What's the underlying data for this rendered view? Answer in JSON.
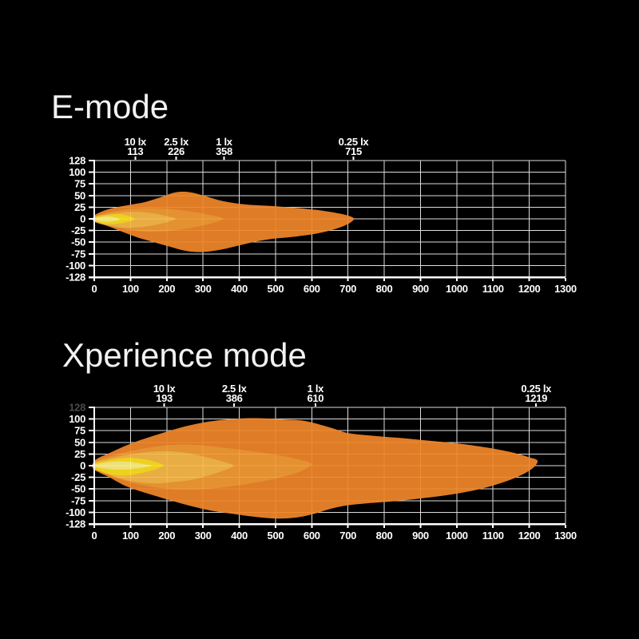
{
  "page": {
    "background": "#000000",
    "grid_line_color": "#DCDCDC",
    "axis_color": "#FFFFFF",
    "label_color": "#FFFFFF",
    "dim_label_color": "#4A4A4A"
  },
  "chart_data": [
    {
      "type": "contour-beam-pattern",
      "title": "E-mode",
      "xlim": [
        0,
        1300
      ],
      "x_ticks": [
        0,
        100,
        200,
        300,
        400,
        500,
        600,
        700,
        800,
        900,
        1000,
        1100,
        1200,
        1300
      ],
      "y_ticks": [
        128,
        100,
        75,
        50,
        25,
        0,
        -25,
        -50,
        -75,
        -100,
        -128
      ],
      "dim_first_y_tick": false,
      "grid": true,
      "annotations": [
        {
          "lux": "10 lx",
          "value": "113",
          "m": 113
        },
        {
          "lux": "2.5 lx",
          "value": "226",
          "m": 226
        },
        {
          "lux": "1 lx",
          "value": "358",
          "m": 358
        },
        {
          "lux": "0.25 lx",
          "value": "715",
          "m": 715
        }
      ],
      "beams": [
        {
          "name": "isoline-0.25lx",
          "color": "#F0862A",
          "points": [
            [
              0,
              7
            ],
            [
              40,
              21
            ],
            [
              90,
              29
            ],
            [
              140,
              36
            ],
            [
              185,
              47
            ],
            [
              225,
              57
            ],
            [
              265,
              57
            ],
            [
              310,
              48
            ],
            [
              355,
              38
            ],
            [
              415,
              31
            ],
            [
              480,
              28
            ],
            [
              550,
              24
            ],
            [
              615,
              19
            ],
            [
              665,
              13
            ],
            [
              700,
              7
            ],
            [
              716,
              0
            ],
            [
              700,
              -11
            ],
            [
              660,
              -23
            ],
            [
              610,
              -32
            ],
            [
              555,
              -38
            ],
            [
              500,
              -42
            ],
            [
              450,
              -48
            ],
            [
              400,
              -57
            ],
            [
              350,
              -66
            ],
            [
              300,
              -71
            ],
            [
              255,
              -69
            ],
            [
              210,
              -60
            ],
            [
              165,
              -50
            ],
            [
              120,
              -40
            ],
            [
              75,
              -27
            ],
            [
              35,
              -15
            ],
            [
              5,
              -7
            ]
          ]
        },
        {
          "name": "isoline-1lx",
          "color": "#F59D35",
          "points": [
            [
              0,
              5
            ],
            [
              45,
              15
            ],
            [
              95,
              21
            ],
            [
              150,
              23
            ],
            [
              210,
              21
            ],
            [
              265,
              16
            ],
            [
              315,
              9
            ],
            [
              356,
              1
            ],
            [
              330,
              -8
            ],
            [
              290,
              -16
            ],
            [
              240,
              -23
            ],
            [
              185,
              -27
            ],
            [
              130,
              -27
            ],
            [
              80,
              -21
            ],
            [
              35,
              -13
            ],
            [
              0,
              -6
            ]
          ]
        },
        {
          "name": "isoline-2.5lx",
          "color": "#FABB4B",
          "points": [
            [
              0,
              4
            ],
            [
              35,
              10
            ],
            [
              80,
              14
            ],
            [
              125,
              15
            ],
            [
              170,
              11
            ],
            [
              205,
              5
            ],
            [
              225,
              0
            ],
            [
              200,
              -7
            ],
            [
              168,
              -13
            ],
            [
              125,
              -18
            ],
            [
              80,
              -19
            ],
            [
              38,
              -14
            ],
            [
              0,
              -5
            ]
          ]
        },
        {
          "name": "isoline-10lx",
          "color": "#FFE11F",
          "points": [
            [
              0,
              3
            ],
            [
              25,
              7
            ],
            [
              55,
              10
            ],
            [
              85,
              8
            ],
            [
              112,
              0
            ],
            [
              88,
              -7
            ],
            [
              58,
              -11
            ],
            [
              28,
              -11
            ],
            [
              0,
              -4
            ]
          ]
        },
        {
          "name": "hotspot-core",
          "color": "#FFF284",
          "points": [
            [
              0,
              1
            ],
            [
              20,
              4
            ],
            [
              45,
              5
            ],
            [
              70,
              -1
            ],
            [
              46,
              -6
            ],
            [
              20,
              -6
            ],
            [
              0,
              -3
            ]
          ]
        }
      ]
    },
    {
      "type": "contour-beam-pattern",
      "title": "Xperience mode",
      "xlim": [
        0,
        1300
      ],
      "x_ticks": [
        0,
        100,
        200,
        300,
        400,
        500,
        600,
        700,
        800,
        900,
        1000,
        1100,
        1200,
        1300
      ],
      "y_ticks": [
        128,
        100,
        75,
        50,
        25,
        0,
        -25,
        -50,
        -75,
        -100,
        -128
      ],
      "dim_first_y_tick": true,
      "grid": true,
      "annotations": [
        {
          "lux": "10 lx",
          "value": "193",
          "m": 193
        },
        {
          "lux": "2.5 lx",
          "value": "386",
          "m": 386
        },
        {
          "lux": "1 lx",
          "value": "610",
          "m": 610
        },
        {
          "lux": "0.25 lx",
          "value": "1219",
          "m": 1219
        }
      ],
      "beams": [
        {
          "name": "isoline-0.25lx",
          "color": "#F0862A",
          "points": [
            [
              0,
              10
            ],
            [
              50,
              30
            ],
            [
              110,
              50
            ],
            [
              180,
              68
            ],
            [
              250,
              84
            ],
            [
              320,
              95
            ],
            [
              395,
              101
            ],
            [
              460,
              102
            ],
            [
              525,
              99
            ],
            [
              580,
              96
            ],
            [
              650,
              82
            ],
            [
              700,
              70
            ],
            [
              770,
              64
            ],
            [
              850,
              59
            ],
            [
              930,
              53
            ],
            [
              1010,
              47
            ],
            [
              1090,
              38
            ],
            [
              1155,
              28
            ],
            [
              1200,
              18
            ],
            [
              1223,
              10
            ],
            [
              1205,
              -8
            ],
            [
              1155,
              -28
            ],
            [
              1080,
              -47
            ],
            [
              1000,
              -60
            ],
            [
              915,
              -69
            ],
            [
              830,
              -76
            ],
            [
              750,
              -81
            ],
            [
              690,
              -86
            ],
            [
              645,
              -94
            ],
            [
              605,
              -104
            ],
            [
              560,
              -112
            ],
            [
              505,
              -115
            ],
            [
              445,
              -111
            ],
            [
              385,
              -104
            ],
            [
              320,
              -96
            ],
            [
              255,
              -84
            ],
            [
              195,
              -71
            ],
            [
              140,
              -58
            ],
            [
              88,
              -44
            ],
            [
              42,
              -25
            ],
            [
              8,
              -11
            ]
          ]
        },
        {
          "name": "isoline-1lx",
          "color": "#F59D35",
          "points": [
            [
              0,
              8
            ],
            [
              50,
              22
            ],
            [
              110,
              33
            ],
            [
              170,
              41
            ],
            [
              230,
              45
            ],
            [
              290,
              44
            ],
            [
              355,
              39
            ],
            [
              425,
              32
            ],
            [
              495,
              24
            ],
            [
              555,
              15
            ],
            [
              600,
              4
            ],
            [
              570,
              -12
            ],
            [
              520,
              -24
            ],
            [
              460,
              -34
            ],
            [
              400,
              -42
            ],
            [
              340,
              -48
            ],
            [
              275,
              -51
            ],
            [
              210,
              -50
            ],
            [
              150,
              -44
            ],
            [
              95,
              -35
            ],
            [
              45,
              -21
            ],
            [
              0,
              -9
            ]
          ]
        },
        {
          "name": "isoline-2.5lx",
          "color": "#FABB4B",
          "points": [
            [
              0,
              6
            ],
            [
              40,
              15
            ],
            [
              90,
              23
            ],
            [
              145,
              29
            ],
            [
              200,
              31
            ],
            [
              255,
              27
            ],
            [
              305,
              19
            ],
            [
              350,
              10
            ],
            [
              384,
              0
            ],
            [
              355,
              -11
            ],
            [
              315,
              -21
            ],
            [
              270,
              -30
            ],
            [
              220,
              -35
            ],
            [
              165,
              -38
            ],
            [
              110,
              -34
            ],
            [
              60,
              -25
            ],
            [
              20,
              -13
            ],
            [
              0,
              -6
            ]
          ]
        },
        {
          "name": "isoline-10lx",
          "color": "#FFE11F",
          "points": [
            [
              0,
              4
            ],
            [
              30,
              10
            ],
            [
              65,
              15
            ],
            [
              100,
              17
            ],
            [
              135,
              14
            ],
            [
              165,
              9
            ],
            [
              191,
              1
            ],
            [
              168,
              -8
            ],
            [
              135,
              -15
            ],
            [
              100,
              -20
            ],
            [
              62,
              -21
            ],
            [
              28,
              -15
            ],
            [
              0,
              -5
            ]
          ]
        },
        {
          "name": "hotspot-core",
          "color": "#FFF284",
          "points": [
            [
              0,
              2
            ],
            [
              25,
              6
            ],
            [
              60,
              9
            ],
            [
              100,
              8
            ],
            [
              133,
              4
            ],
            [
              158,
              0
            ],
            [
              128,
              -5
            ],
            [
              90,
              -8
            ],
            [
              50,
              -8
            ],
            [
              18,
              -5
            ],
            [
              0,
              -2
            ]
          ]
        }
      ]
    }
  ]
}
